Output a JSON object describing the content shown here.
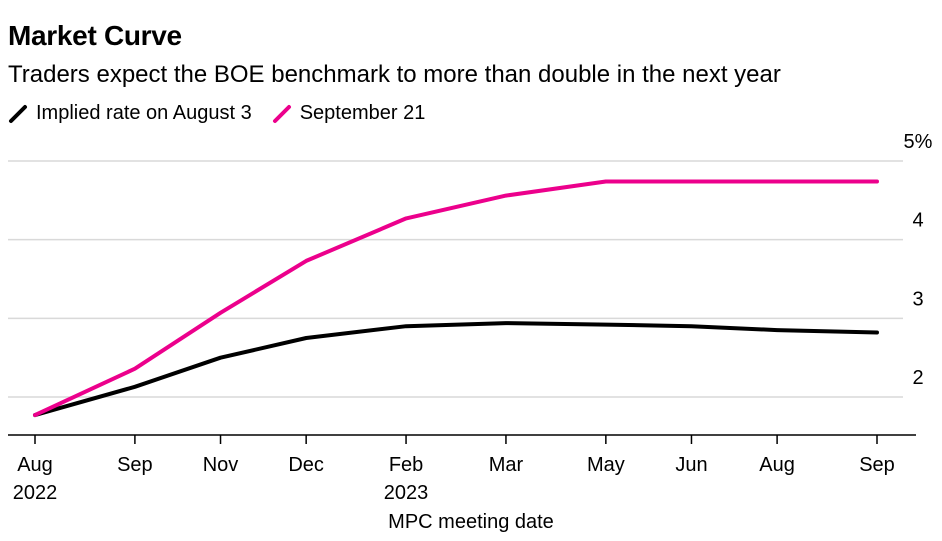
{
  "header": {
    "title": "Market Curve",
    "subtitle": "Traders expect the BOE benchmark to more than double in the next year"
  },
  "legend": {
    "items": [
      {
        "label": "Implied rate on August 3",
        "color": "#000000"
      },
      {
        "label": "September 21",
        "color": "#ec008c"
      }
    ]
  },
  "chart_data": {
    "type": "line",
    "xlabel": "MPC meeting date",
    "ylabel": "",
    "ylim": [
      1.5,
      5
    ],
    "y_ticks": [
      {
        "value": 2,
        "label": "2"
      },
      {
        "value": 3,
        "label": "3"
      },
      {
        "value": 4,
        "label": "4"
      },
      {
        "value": 5,
        "label": "5%"
      }
    ],
    "x_ticks": [
      {
        "date": "2022-08-04",
        "label": "Aug",
        "sublabel": "2022"
      },
      {
        "date": "2022-09-22",
        "label": "Sep",
        "sublabel": ""
      },
      {
        "date": "2022-11-03",
        "label": "Nov",
        "sublabel": ""
      },
      {
        "date": "2022-12-15",
        "label": "Dec",
        "sublabel": ""
      },
      {
        "date": "2023-02-02",
        "label": "Feb",
        "sublabel": "2023"
      },
      {
        "date": "2023-03-23",
        "label": "Mar",
        "sublabel": ""
      },
      {
        "date": "2023-05-11",
        "label": "May",
        "sublabel": ""
      },
      {
        "date": "2023-06-22",
        "label": "Jun",
        "sublabel": ""
      },
      {
        "date": "2023-08-03",
        "label": "Aug",
        "sublabel": ""
      },
      {
        "date": "2023-09-21",
        "label": "Sep",
        "sublabel": ""
      }
    ],
    "grid": true,
    "legend_position": "top-left",
    "series": [
      {
        "name": "Implied rate on August 3",
        "color": "#000000",
        "points": [
          {
            "x": "2022-08-04",
            "y": 1.77
          },
          {
            "x": "2022-09-22",
            "y": 2.13
          },
          {
            "x": "2022-11-03",
            "y": 2.5
          },
          {
            "x": "2022-12-15",
            "y": 2.75
          },
          {
            "x": "2023-02-02",
            "y": 2.9
          },
          {
            "x": "2023-03-23",
            "y": 2.94
          },
          {
            "x": "2023-05-11",
            "y": 2.92
          },
          {
            "x": "2023-06-22",
            "y": 2.9
          },
          {
            "x": "2023-08-03",
            "y": 2.85
          },
          {
            "x": "2023-09-21",
            "y": 2.82
          }
        ]
      },
      {
        "name": "September 21",
        "color": "#ec008c",
        "points": [
          {
            "x": "2022-08-04",
            "y": 1.77
          },
          {
            "x": "2022-09-22",
            "y": 2.36
          },
          {
            "x": "2022-11-03",
            "y": 3.07
          },
          {
            "x": "2022-12-15",
            "y": 3.73
          },
          {
            "x": "2023-02-02",
            "y": 4.27
          },
          {
            "x": "2023-03-23",
            "y": 4.56
          },
          {
            "x": "2023-05-11",
            "y": 4.74
          },
          {
            "x": "2023-09-21",
            "y": 4.74
          }
        ]
      }
    ]
  }
}
